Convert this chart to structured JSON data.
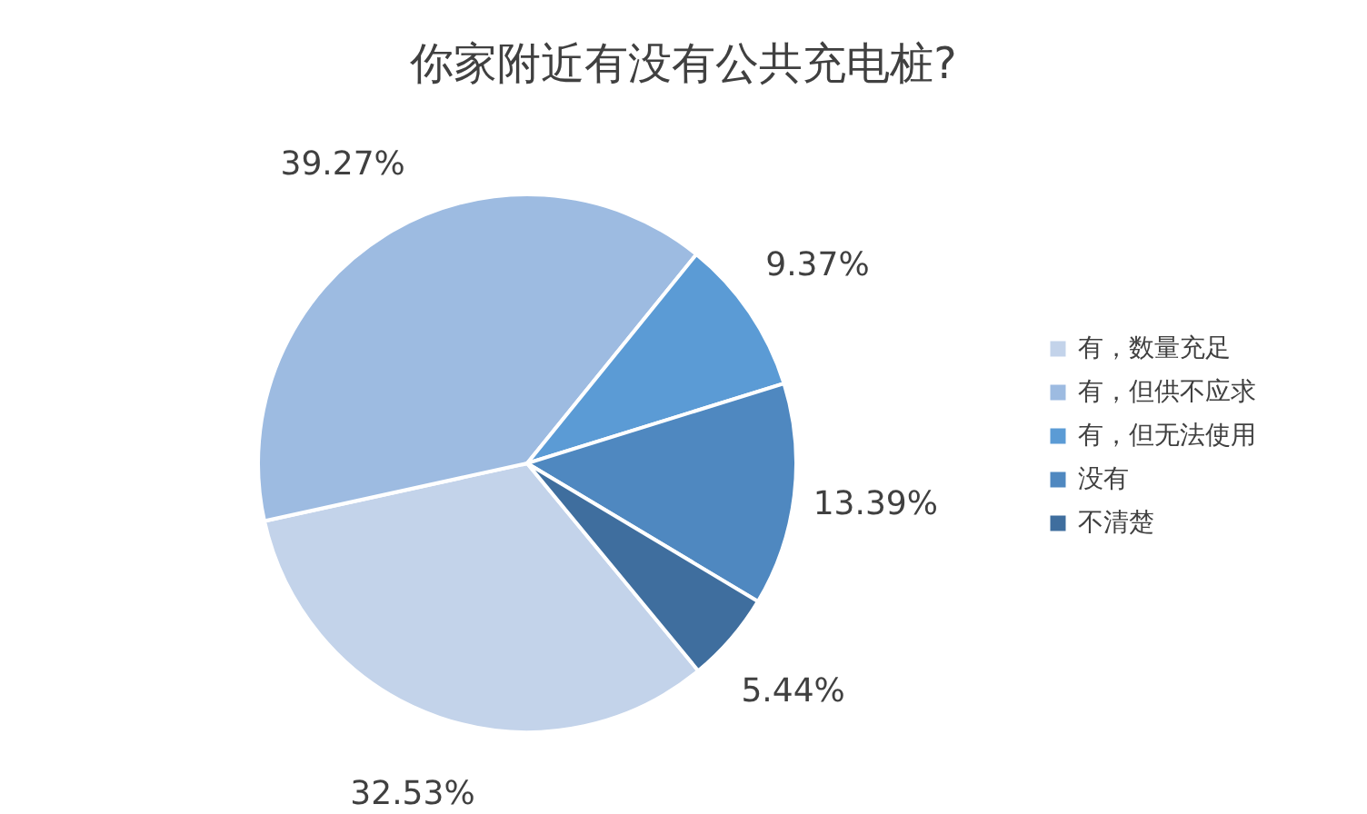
{
  "chart_data": {
    "type": "pie",
    "title": "你家附近有没有公共充电桩?",
    "categories": [
      "有，数量充足",
      "有，但供不应求",
      "有，但无法使用",
      "没有",
      "不清楚"
    ],
    "values": [
      32.53,
      39.27,
      9.37,
      13.39,
      5.44
    ],
    "value_labels": [
      "32.53%",
      "39.27%",
      "9.37%",
      "13.39%",
      "5.44%"
    ],
    "colors": [
      "#c3d3ea",
      "#9dbbe1",
      "#5b9bd5",
      "#4f88c0",
      "#3f6e9e"
    ],
    "legend": "right"
  }
}
